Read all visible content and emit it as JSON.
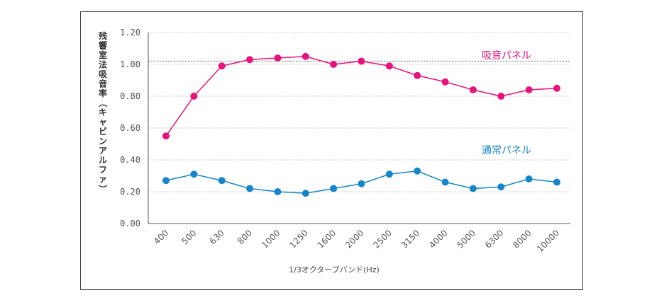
{
  "colors": {
    "absorb": "#e6127d",
    "normal": "#1686c8",
    "grid": "#c8c8c8",
    "axis": "#555555",
    "reference": "#888888"
  },
  "chart_data": {
    "type": "line",
    "xlabel": "1/3オクターブバンド(Hz)",
    "ylabel_chars": [
      "残",
      "響",
      "室",
      "法",
      "吸",
      "音",
      "率",
      "（",
      "キ",
      "ャ",
      "ビ",
      "ン",
      "ア",
      "ル",
      "フ",
      "ァ",
      "）"
    ],
    "categories": [
      "400",
      "500",
      "630",
      "800",
      "1000",
      "1250",
      "1600",
      "2000",
      "2500",
      "3150",
      "4000",
      "5000",
      "6300",
      "8000",
      "10000"
    ],
    "ylim": [
      0,
      1.2
    ],
    "yticks": [
      "0.00",
      "0.20",
      "0.40",
      "0.60",
      "0.80",
      "1.00",
      "1.20"
    ],
    "grid": true,
    "reference_line": 1.02,
    "series": [
      {
        "name": "吸音パネル",
        "color_key": "absorb",
        "values": [
          0.55,
          0.8,
          0.99,
          1.03,
          1.04,
          1.05,
          1.0,
          1.02,
          0.99,
          0.93,
          0.89,
          0.84,
          0.8,
          0.84,
          0.85
        ]
      },
      {
        "name": "通常パネル",
        "color_key": "normal",
        "values": [
          0.27,
          0.31,
          0.27,
          0.22,
          0.2,
          0.19,
          0.22,
          0.25,
          0.31,
          0.33,
          0.26,
          0.22,
          0.23,
          0.28,
          0.26
        ]
      }
    ]
  }
}
